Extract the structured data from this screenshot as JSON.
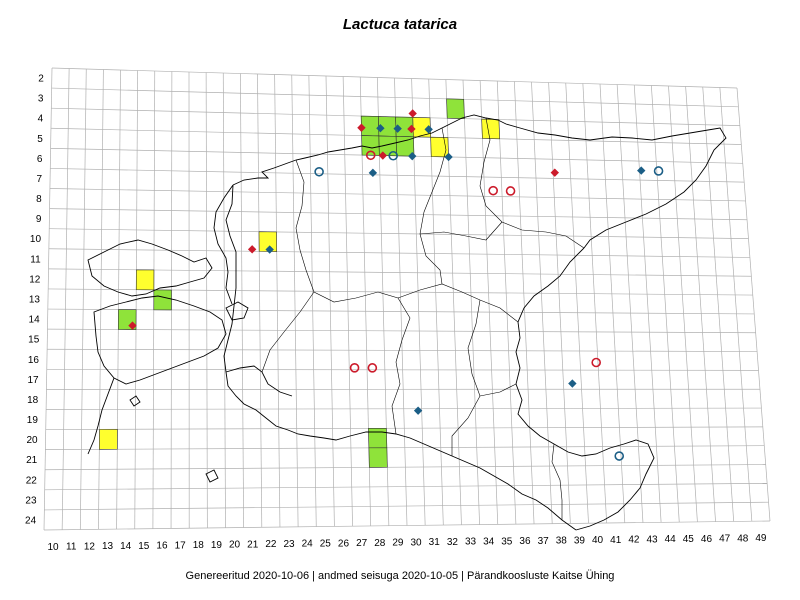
{
  "title": "Lactuca tatarica",
  "footer": "Genereeritud 2020-10-06  |  andmed seisuga 2020-10-05  |  Pärandkoosluste Kaitse Ühing",
  "grid": {
    "rows": [
      "2",
      "3",
      "4",
      "5",
      "6",
      "7",
      "8",
      "9",
      "10",
      "11",
      "12",
      "13",
      "14",
      "15",
      "16",
      "17",
      "18",
      "19",
      "20",
      "21",
      "22",
      "23",
      "24"
    ],
    "cols": [
      "10",
      "11",
      "12",
      "13",
      "14",
      "15",
      "16",
      "17",
      "18",
      "19",
      "20",
      "21",
      "22",
      "23",
      "24",
      "25",
      "26",
      "27",
      "28",
      "29",
      "30",
      "31",
      "32",
      "33",
      "34",
      "35",
      "36",
      "37",
      "38",
      "39",
      "40",
      "41",
      "42",
      "43",
      "44",
      "45",
      "46",
      "47",
      "48",
      "49"
    ]
  },
  "colors": {
    "green_square": "#8fe33a",
    "yellow_square": "#ffff2e",
    "red_marker": "#cc1b2b",
    "blue_marker": "#1b5e86",
    "grid_line": "#b0b0b0",
    "coast_line": "#000000"
  },
  "marker_types": {
    "green-square": "filled grid square (green)",
    "yellow-square": "filled grid square (yellow)",
    "red-diamond": "filled red diamond",
    "blue-diamond": "filled blue diamond",
    "red-circle": "open red circle",
    "blue-circle": "open blue circle"
  },
  "squares": [
    {
      "col": 28,
      "row": 4,
      "color": "green"
    },
    {
      "col": 29,
      "row": 4,
      "color": "green"
    },
    {
      "col": 30,
      "row": 4,
      "color": "green"
    },
    {
      "col": 33,
      "row": 3,
      "color": "green"
    },
    {
      "col": 28,
      "row": 5,
      "color": "green"
    },
    {
      "col": 29,
      "row": 5,
      "color": "green"
    },
    {
      "col": 30,
      "row": 5,
      "color": "green"
    },
    {
      "col": 31,
      "row": 4,
      "color": "yellow"
    },
    {
      "col": 32,
      "row": 5,
      "color": "yellow"
    },
    {
      "col": 35,
      "row": 4,
      "color": "yellow"
    },
    {
      "col": 22,
      "row": 10,
      "color": "yellow"
    },
    {
      "col": 15,
      "row": 12,
      "color": "yellow"
    },
    {
      "col": 16,
      "row": 13,
      "color": "green"
    },
    {
      "col": 14,
      "row": 14,
      "color": "green"
    },
    {
      "col": 13,
      "row": 20,
      "color": "yellow"
    },
    {
      "col": 28,
      "row": 20,
      "color": "green"
    },
    {
      "col": 28,
      "row": 21,
      "color": "green"
    }
  ],
  "points": [
    {
      "type": "red-diamond",
      "col": 27.5,
      "row": 4.1
    },
    {
      "type": "red-diamond",
      "col": 30.5,
      "row": 3.3
    },
    {
      "type": "red-diamond",
      "col": 30.4,
      "row": 4.1
    },
    {
      "type": "red-diamond",
      "col": 28.7,
      "row": 5.5
    },
    {
      "type": "red-diamond",
      "col": 21.1,
      "row": 10.4
    },
    {
      "type": "red-diamond",
      "col": 14.3,
      "row": 14.3
    },
    {
      "type": "red-diamond",
      "col": 38.6,
      "row": 6.2
    },
    {
      "type": "blue-diamond",
      "col": 28.6,
      "row": 4.1
    },
    {
      "type": "blue-diamond",
      "col": 29.6,
      "row": 4.1
    },
    {
      "type": "blue-diamond",
      "col": 31.4,
      "row": 4.1
    },
    {
      "type": "blue-diamond",
      "col": 30.4,
      "row": 5.5
    },
    {
      "type": "blue-diamond",
      "col": 32.5,
      "row": 5.5
    },
    {
      "type": "blue-diamond",
      "col": 28.1,
      "row": 6.4
    },
    {
      "type": "blue-diamond",
      "col": 22.1,
      "row": 10.4
    },
    {
      "type": "blue-diamond",
      "col": 43.6,
      "row": 6.0
    },
    {
      "type": "blue-diamond",
      "col": 39.0,
      "row": 17.2
    },
    {
      "type": "blue-diamond",
      "col": 30.3,
      "row": 18.6
    },
    {
      "type": "blue-circle",
      "col": 29.3,
      "row": 5.5
    },
    {
      "type": "blue-circle",
      "col": 25.0,
      "row": 6.4
    },
    {
      "type": "blue-circle",
      "col": 44.6,
      "row": 6.0
    },
    {
      "type": "blue-circle",
      "col": 41.4,
      "row": 21.0
    },
    {
      "type": "red-circle",
      "col": 28.0,
      "row": 5.5
    },
    {
      "type": "red-circle",
      "col": 35.0,
      "row": 7.2
    },
    {
      "type": "red-circle",
      "col": 36.0,
      "row": 7.2
    },
    {
      "type": "red-circle",
      "col": 40.4,
      "row": 16.1
    },
    {
      "type": "red-circle",
      "col": 26.8,
      "row": 16.4
    },
    {
      "type": "red-circle",
      "col": 27.8,
      "row": 16.4
    }
  ]
}
